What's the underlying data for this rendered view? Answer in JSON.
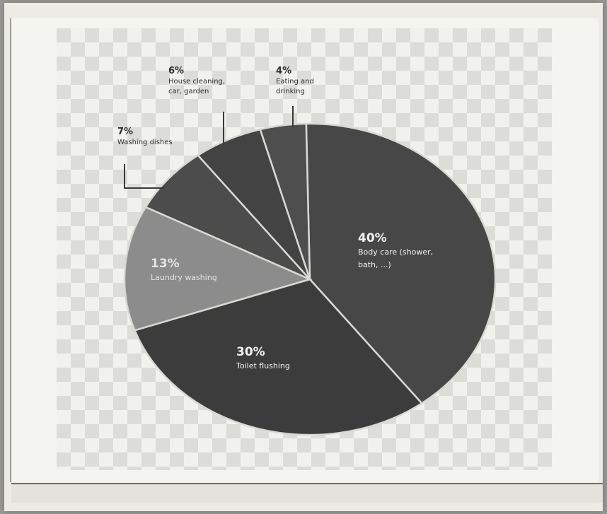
{
  "chart_data": {
    "type": "pie",
    "slices": [
      {
        "value": 40,
        "pct_label": "40%",
        "label": "Body care (shower, bath, ...)",
        "color": "#474747",
        "text_color": "#f2f2f2"
      },
      {
        "value": 30,
        "pct_label": "30%",
        "label": "Toilet flushing",
        "color": "#3c3c3c",
        "text_color": "#f2f2f2"
      },
      {
        "value": 13,
        "pct_label": "13%",
        "label": "Laundry washing",
        "color": "#8c8c8c",
        "text_color": "#e4e4e4"
      },
      {
        "value": 7,
        "pct_label": "7%",
        "label": "Washing dishes",
        "color": "#4c4c4c",
        "text_color": "#2f2f2f"
      },
      {
        "value": 6,
        "pct_label": "6%",
        "label": "House cleaning, car, garden",
        "color": "#434343",
        "text_color": "#2f2f2f"
      },
      {
        "value": 4,
        "pct_label": "4%",
        "label": "Eating and drinking",
        "color": "#4e4e4e",
        "text_color": "#2f2f2f"
      }
    ]
  }
}
